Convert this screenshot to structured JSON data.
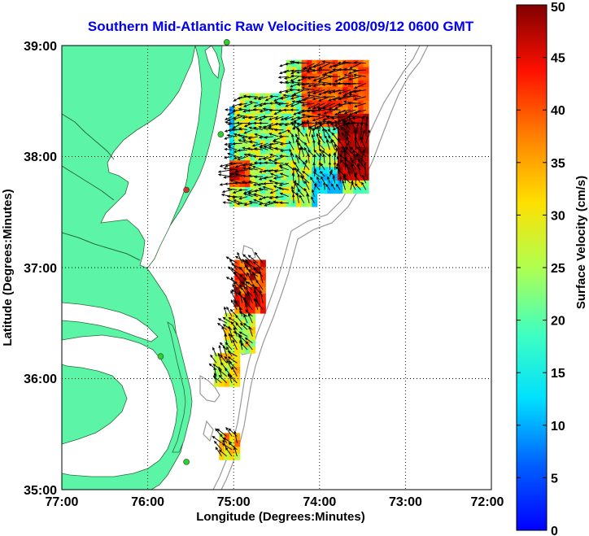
{
  "title": "Southern Mid-Atlantic Raw Velocities 2008/09/12 0600 GMT",
  "map": {
    "x_label": "Longitude (Degrees:Minutes)",
    "y_label": "Latitude (Degrees:Minutes)",
    "x_ticks": [
      "77:00",
      "76:00",
      "75:00",
      "74:00",
      "73:00",
      "72:00"
    ],
    "y_ticks": [
      "39:00",
      "38:00",
      "37:00",
      "36:00",
      "35:00"
    ],
    "lon_range": [
      -77,
      -72
    ],
    "lat_range": [
      35,
      39
    ],
    "land_color": "#5cf5a8",
    "grid": "dotted"
  },
  "colorbar": {
    "label": "Surface Velocity (cm/s)",
    "ticks": [
      "0",
      "5",
      "10",
      "15",
      "20",
      "25",
      "30",
      "35",
      "40",
      "45",
      "50"
    ],
    "range": [
      0,
      50
    ],
    "colormap": "jet"
  },
  "stations": [
    {
      "lon": -75.08,
      "lat": 39.03,
      "color": "#33cc33"
    },
    {
      "lon": -75.15,
      "lat": 38.2,
      "color": "#33cc33"
    },
    {
      "lon": -75.55,
      "lat": 37.7,
      "color": "#cc3333"
    },
    {
      "lon": -75.85,
      "lat": 36.2,
      "color": "#33cc33"
    },
    {
      "lon": -75.55,
      "lat": 35.25,
      "color": "#33cc33"
    }
  ]
}
